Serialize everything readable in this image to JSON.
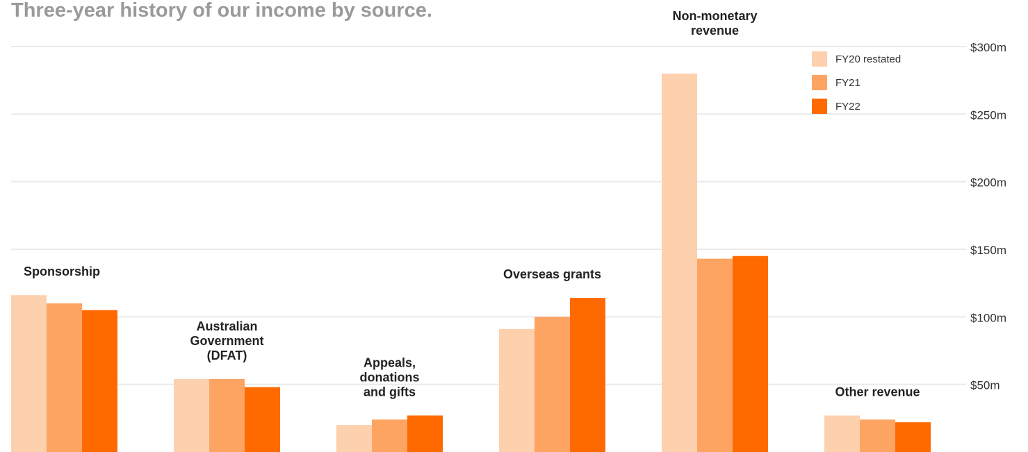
{
  "colors": {
    "fy20": "#FDD0AE",
    "fy21": "#FDA463",
    "fy22": "#FF6A00",
    "title": "#9A9A9A",
    "grid": "#EAEAEA"
  },
  "chart_data": {
    "type": "bar",
    "title": "Three-year history of our income by source.",
    "xlabel": "",
    "ylabel": "",
    "ylim": [
      0,
      300
    ],
    "yticks": [
      {
        "value": 50,
        "label": "$50m"
      },
      {
        "value": 100,
        "label": "$100m"
      },
      {
        "value": 150,
        "label": "$150m"
      },
      {
        "value": 200,
        "label": "$200m"
      },
      {
        "value": 250,
        "label": "$250m"
      },
      {
        "value": 300,
        "label": "$300m"
      }
    ],
    "grid": true,
    "legend_position": "top-right",
    "categories": [
      {
        "label": "Sponsorship",
        "lines": [
          "Sponsorship"
        ]
      },
      {
        "label": "Australian Government (DFAT)",
        "lines": [
          "Australian",
          "Government",
          "(DFAT)"
        ]
      },
      {
        "label": "Appeals, donations and gifts",
        "lines": [
          "Appeals,",
          "donations",
          "and gifts"
        ]
      },
      {
        "label": "Overseas grants",
        "lines": [
          "Overseas grants"
        ]
      },
      {
        "label": "Non-monetary revenue",
        "lines": [
          "Non-monetary",
          "revenue"
        ]
      },
      {
        "label": "Other revenue",
        "lines": [
          "Other revenue"
        ]
      }
    ],
    "series": [
      {
        "name": "FY20 restated",
        "color_key": "fy20",
        "values": [
          116,
          54,
          20,
          91,
          280,
          27
        ]
      },
      {
        "name": "FY21",
        "color_key": "fy21",
        "values": [
          110,
          54,
          24,
          100,
          143,
          24
        ]
      },
      {
        "name": "FY22",
        "color_key": "fy22",
        "values": [
          105,
          48,
          27,
          114,
          145,
          22
        ]
      }
    ]
  }
}
